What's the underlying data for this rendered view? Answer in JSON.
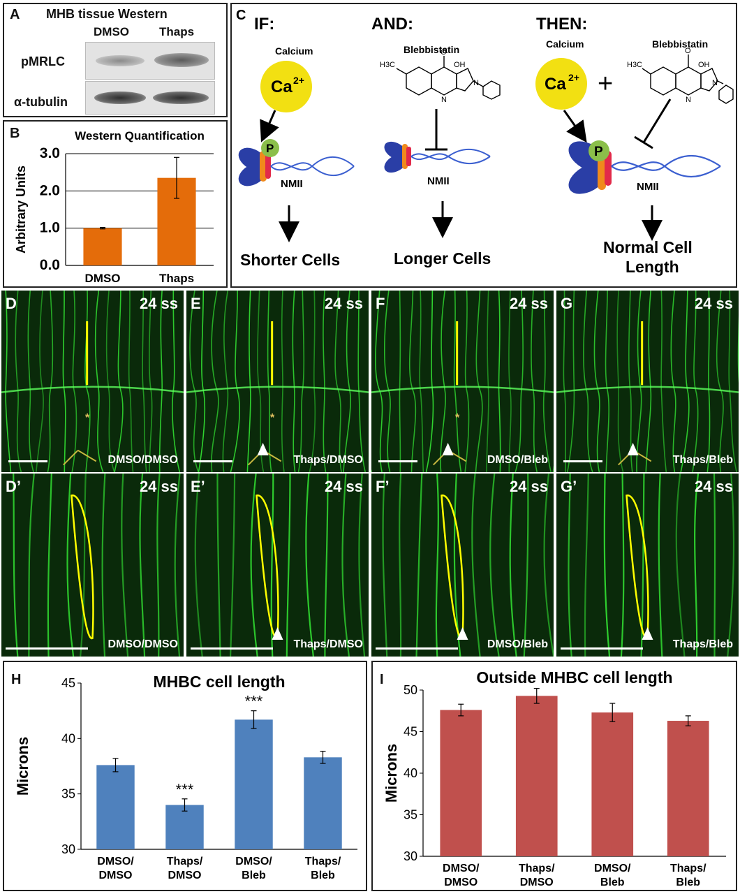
{
  "panelA": {
    "letter": "A",
    "title": "MHB tissue Western",
    "cols": [
      "DMSO",
      "Thaps"
    ],
    "rows": [
      "pMRLC",
      "α-tubulin"
    ]
  },
  "panelB": {
    "letter": "B",
    "chart_data": {
      "type": "bar",
      "title": "Western Quantification",
      "ylabel": "Arbitrary Units",
      "categories": [
        "DMSO",
        "Thaps"
      ],
      "values": [
        1.0,
        2.35
      ],
      "errors": [
        0.02,
        0.55
      ],
      "ylim": [
        0,
        3.0
      ],
      "yticks": [
        "0.0",
        "1.0",
        "2.0",
        "3.0"
      ],
      "grid": true,
      "color": "#e46c0a"
    }
  },
  "panelC": {
    "letter": "C",
    "if_label": "IF:",
    "and_label": "AND:",
    "then_label": "THEN:",
    "calcium": "Calcium",
    "blebbistatin": "Blebbistatin",
    "ca_symbol": "Ca",
    "ca_charge": "2+",
    "phospho": "P",
    "nmii": "NMII",
    "shorter": "Shorter Cells",
    "longer": "Longer Cells",
    "normal_line1": "Normal Cell",
    "normal_line2": "Length",
    "plus": "+",
    "chem": {
      "h3c": "H3C",
      "o": "O",
      "oh": "OH",
      "n": "N"
    },
    "colors": {
      "calcium": "#f2e012",
      "myosin_blue": "#2a3ea6",
      "myosin_orange": "#f08a1c",
      "myosin_red": "#e22a4a",
      "phospho_green": "#8bbf4a",
      "helix": "#3b5fd0"
    }
  },
  "micrographs": {
    "stage": "24 ss",
    "top": [
      {
        "letter": "D",
        "cond": "DMSO/DMSO"
      },
      {
        "letter": "E",
        "cond": "Thaps/DMSO"
      },
      {
        "letter": "F",
        "cond": "DMSO/Bleb"
      },
      {
        "letter": "G",
        "cond": "Thaps/Bleb"
      }
    ],
    "bottom": [
      {
        "letter": "D’",
        "cond": "DMSO/DMSO"
      },
      {
        "letter": "E’",
        "cond": "Thaps/DMSO"
      },
      {
        "letter": "F’",
        "cond": "DMSO/Bleb"
      },
      {
        "letter": "G’",
        "cond": "Thaps/Bleb"
      }
    ],
    "asterisk": "*"
  },
  "panelH": {
    "letter": "H",
    "chart_data": {
      "type": "bar",
      "title": "MHBC cell length",
      "ylabel": "Microns",
      "categories": [
        [
          "DMSO/",
          "DMSO"
        ],
        [
          "Thaps/",
          "DMSO"
        ],
        [
          "DMSO/",
          "Bleb"
        ],
        [
          "Thaps/",
          "Bleb"
        ]
      ],
      "values": [
        37.6,
        34.0,
        41.7,
        38.3
      ],
      "errors": [
        0.6,
        0.55,
        0.8,
        0.55
      ],
      "significance": [
        "",
        "***",
        "***",
        ""
      ],
      "ylim": [
        30,
        45
      ],
      "yticks": [
        "30",
        "35",
        "40",
        "45"
      ],
      "color": "#4f81bd"
    }
  },
  "panelI": {
    "letter": "I",
    "chart_data": {
      "type": "bar",
      "title": "Outside MHBC cell length",
      "ylabel": "Microns",
      "categories": [
        [
          "DMSO/",
          "DMSO"
        ],
        [
          "Thaps/",
          "DMSO"
        ],
        [
          "DMSO/",
          "Bleb"
        ],
        [
          "Thaps/",
          "Bleb"
        ]
      ],
      "values": [
        47.6,
        49.3,
        47.3,
        46.3
      ],
      "errors": [
        0.7,
        0.9,
        1.1,
        0.6
      ],
      "ylim": [
        30,
        50
      ],
      "yticks": [
        "30",
        "35",
        "40",
        "45",
        "50"
      ],
      "color": "#c0504d"
    }
  }
}
